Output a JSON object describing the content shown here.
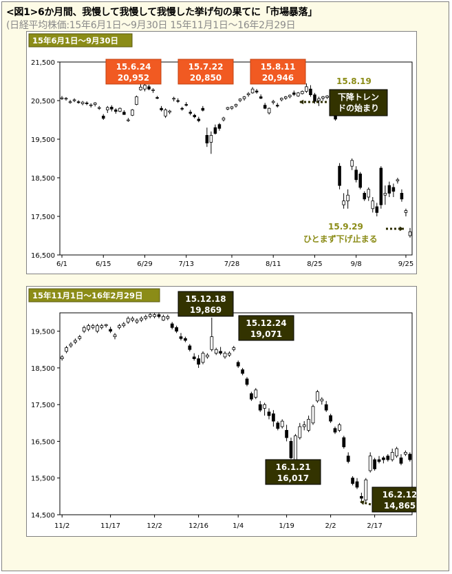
{
  "header": {
    "title": "<図1>6か月間、我慢して我慢して我慢した挙げ句の果てに「市場暴落」",
    "subtitle": "(日経平均株価:15年6月1日〜9月30日 15年11月1日〜16年2月29日"
  },
  "colors": {
    "orange": "#f15a22",
    "darkbox": "#333300",
    "olive": "#8b8c17",
    "outerbg": "#fdfbe6"
  },
  "chart_data": [
    {
      "type": "candlestick",
      "title": "15年6月1日〜9月30日",
      "ylim": [
        16500,
        21500
      ],
      "yticks": [
        "21,500",
        "20,500",
        "19,500",
        "18,500",
        "17,500",
        "16,500"
      ],
      "ytick_values": [
        21500,
        20500,
        19500,
        18500,
        17500,
        16500
      ],
      "xtick_labels": [
        "6/1",
        "6/15",
        "6/29",
        "7/13",
        "7/28",
        "8/11",
        "8/25",
        "9/8",
        "9/25"
      ],
      "xtick_index": [
        0,
        10,
        20,
        30,
        41,
        51,
        61,
        71,
        83
      ],
      "n_days": 85,
      "candles": [
        [
          20569,
          20620,
          20520,
          20570
        ],
        [
          20545,
          20590,
          20500,
          20560
        ],
        [
          20470,
          20520,
          20420,
          20470
        ],
        [
          20500,
          20560,
          20460,
          20520
        ],
        [
          20470,
          20510,
          20420,
          20460
        ],
        [
          20420,
          20490,
          20380,
          20460
        ],
        [
          20440,
          20480,
          20380,
          20420
        ],
        [
          20380,
          20430,
          20320,
          20390
        ],
        [
          20400,
          20460,
          20350,
          20440
        ],
        [
          20320,
          20360,
          20260,
          20320
        ],
        [
          20100,
          20150,
          20000,
          20040
        ],
        [
          20260,
          20360,
          20180,
          20320
        ],
        [
          20330,
          20380,
          20220,
          20280
        ],
        [
          20260,
          20300,
          20160,
          20220
        ],
        [
          20220,
          20320,
          20200,
          20300
        ],
        [
          20200,
          20250,
          20130,
          20140
        ],
        [
          20000,
          20050,
          19950,
          20000
        ],
        [
          20120,
          20280,
          20100,
          20260
        ],
        [
          20400,
          20630,
          20380,
          20600
        ],
        [
          20780,
          20920,
          20760,
          20850
        ],
        [
          20800,
          20952,
          20740,
          20900
        ],
        [
          20860,
          20910,
          20770,
          20800
        ],
        [
          20760,
          20820,
          20700,
          20780
        ],
        [
          20580,
          20620,
          20540,
          20560
        ],
        [
          20300,
          20360,
          20220,
          20260
        ],
        [
          20100,
          20300,
          20050,
          20260
        ],
        [
          20200,
          20260,
          20150,
          20230
        ],
        [
          20550,
          20600,
          20480,
          20560
        ],
        [
          20500,
          20560,
          20440,
          20480
        ],
        [
          20300,
          20340,
          20240,
          20280
        ],
        [
          20400,
          20460,
          20350,
          20380
        ],
        [
          20200,
          20260,
          20120,
          20170
        ],
        [
          20120,
          20160,
          20040,
          20080
        ],
        [
          20020,
          20080,
          19940,
          19980
        ],
        [
          20300,
          20360,
          20220,
          20250
        ],
        [
          19600,
          19800,
          19300,
          19400
        ],
        [
          19420,
          19700,
          19120,
          19600
        ],
        [
          19800,
          19880,
          19620,
          19650
        ],
        [
          19880,
          19920,
          19720,
          19780
        ],
        [
          20000,
          20080,
          19960,
          20050
        ],
        [
          20280,
          20340,
          20250,
          20320
        ],
        [
          20300,
          20360,
          20260,
          20340
        ],
        [
          20360,
          20420,
          20320,
          20400
        ],
        [
          20500,
          20560,
          20460,
          20540
        ],
        [
          20550,
          20620,
          20500,
          20600
        ],
        [
          20650,
          20720,
          20600,
          20680
        ],
        [
          20700,
          20850,
          20680,
          20800
        ],
        [
          20750,
          20800,
          20680,
          20720
        ],
        [
          20600,
          20660,
          20540,
          20560
        ],
        [
          20380,
          20440,
          20280,
          20300
        ],
        [
          20180,
          20320,
          20140,
          20300
        ],
        [
          20450,
          20520,
          20400,
          20480
        ],
        [
          20380,
          20440,
          20320,
          20360
        ],
        [
          20520,
          20580,
          20480,
          20560
        ],
        [
          20560,
          20620,
          20520,
          20600
        ],
        [
          20600,
          20660,
          20560,
          20640
        ],
        [
          20700,
          20760,
          20620,
          20660
        ],
        [
          20620,
          20720,
          20600,
          20700
        ],
        [
          20680,
          20760,
          20660,
          20740
        ],
        [
          20740,
          20946,
          20700,
          20860
        ],
        [
          20800,
          20900,
          20600,
          20650
        ],
        [
          20650,
          20700,
          20420,
          20480
        ],
        [
          20500,
          20600,
          20360,
          20550
        ],
        [
          20560,
          20620,
          20500,
          20600
        ],
        [
          20580,
          20640,
          20540,
          20620
        ],
        [
          20400,
          20460,
          20300,
          20330
        ],
        [
          20100,
          20160,
          19980,
          20020
        ],
        [
          18800,
          18880,
          18200,
          18300
        ],
        [
          17800,
          18100,
          17700,
          17900
        ],
        [
          17900,
          18200,
          17700,
          18050
        ],
        [
          18800,
          19000,
          18700,
          18950
        ],
        [
          18700,
          18800,
          18380,
          18450
        ],
        [
          18600,
          18650,
          18200,
          18250
        ],
        [
          18100,
          18150,
          17900,
          17950
        ],
        [
          18000,
          18250,
          17900,
          18200
        ],
        [
          17700,
          18000,
          17600,
          17900
        ],
        [
          17750,
          17850,
          17500,
          17600
        ],
        [
          18750,
          18800,
          17700,
          17800
        ],
        [
          18050,
          18300,
          17800,
          18100
        ],
        [
          18300,
          18400,
          18000,
          18100
        ],
        [
          18250,
          18350,
          18000,
          18150
        ],
        [
          18420,
          18500,
          18350,
          18450
        ],
        [
          18100,
          18200,
          17880,
          17950
        ],
        [
          17600,
          17700,
          17500,
          17650
        ],
        [
          17000,
          17200,
          16950,
          17100
        ]
      ],
      "annotations": [
        {
          "text": [
            "15.6.24",
            "20,952"
          ],
          "style": "orange"
        },
        {
          "text": [
            "15.7.22",
            "20,850"
          ],
          "style": "orange"
        },
        {
          "text": [
            "15.8.11",
            "20,946"
          ],
          "style": "orange"
        },
        {
          "text": [
            "15.8.19"
          ],
          "style": "olive-text"
        },
        {
          "text": [
            "下降トレン",
            "ドの始まり"
          ],
          "style": "dark"
        },
        {
          "text": [
            "15.9.29"
          ],
          "style": "olive-text"
        },
        {
          "text": [
            "ひとまず下げ止まる"
          ],
          "style": "olive-text"
        }
      ]
    },
    {
      "type": "candlestick",
      "title": "15年11月1日〜16年2月29日",
      "ylim": [
        14500,
        20000
      ],
      "yticks": [
        "19,500",
        "18,500",
        "17,500",
        "16,500",
        "15,500",
        "14,500"
      ],
      "ytick_values": [
        19500,
        18500,
        17500,
        16500,
        15500,
        14500
      ],
      "xtick_labels": [
        "11/2",
        "11/17",
        "12/2",
        "12/16",
        "1/4",
        "1/19",
        "2/2",
        "2/17"
      ],
      "xtick_index": [
        0,
        11,
        21,
        31,
        40,
        51,
        61,
        71
      ],
      "n_days": 80,
      "candles": [
        [
          18750,
          18850,
          18700,
          18800
        ],
        [
          18950,
          19100,
          18900,
          19050
        ],
        [
          19100,
          19200,
          19050,
          19150
        ],
        [
          19200,
          19300,
          19150,
          19250
        ],
        [
          19300,
          19400,
          19250,
          19350
        ],
        [
          19500,
          19650,
          19450,
          19600
        ],
        [
          19550,
          19700,
          19500,
          19650
        ],
        [
          19600,
          19700,
          19550,
          19650
        ],
        [
          19500,
          19700,
          19450,
          19650
        ],
        [
          19600,
          19700,
          19550,
          19650
        ],
        [
          19650,
          19700,
          19600,
          19680
        ],
        [
          19550,
          19620,
          19450,
          19500
        ],
        [
          19350,
          19450,
          19280,
          19400
        ],
        [
          19600,
          19700,
          19550,
          19650
        ],
        [
          19650,
          19750,
          19600,
          19700
        ],
        [
          19750,
          19900,
          19700,
          19850
        ],
        [
          19800,
          19900,
          19750,
          19850
        ],
        [
          19750,
          19850,
          19700,
          19800
        ],
        [
          19800,
          19900,
          19750,
          19850
        ],
        [
          19850,
          19950,
          19800,
          19900
        ],
        [
          19900,
          20000,
          19850,
          19950
        ],
        [
          19900,
          20000,
          19850,
          19950
        ],
        [
          19950,
          20012,
          19850,
          19900
        ],
        [
          19800,
          19950,
          19780,
          19900
        ],
        [
          19850,
          19950,
          19800,
          19900
        ],
        [
          19700,
          19750,
          19550,
          19600
        ],
        [
          19600,
          19650,
          19450,
          19500
        ],
        [
          19350,
          19450,
          19250,
          19300
        ],
        [
          19300,
          19350,
          19200,
          19250
        ],
        [
          19100,
          19150,
          18950,
          19000
        ],
        [
          18800,
          18900,
          18700,
          18750
        ],
        [
          18750,
          18850,
          18500,
          18600
        ],
        [
          18650,
          18950,
          18600,
          18900
        ],
        [
          18800,
          18900,
          18750,
          18850
        ],
        [
          19000,
          19869,
          18950,
          19350
        ],
        [
          18900,
          19050,
          18850,
          19000
        ],
        [
          18950,
          19071,
          18850,
          18900
        ],
        [
          18800,
          18950,
          18750,
          18900
        ],
        [
          18850,
          18950,
          18800,
          18900
        ],
        [
          19000,
          19100,
          18950,
          19050
        ],
        [
          18650,
          18700,
          18500,
          18550
        ],
        [
          18450,
          18500,
          18300,
          18350
        ],
        [
          18200,
          18250,
          18000,
          18050
        ],
        [
          17800,
          17850,
          17600,
          17650
        ],
        [
          17700,
          17950,
          17650,
          17900
        ],
        [
          17500,
          17600,
          17300,
          17350
        ],
        [
          17400,
          17550,
          17200,
          17500
        ],
        [
          17300,
          17400,
          17100,
          17200
        ],
        [
          17250,
          17350,
          16900,
          17050
        ],
        [
          17000,
          17050,
          16800,
          16850
        ],
        [
          16900,
          17100,
          16850,
          17050
        ],
        [
          16800,
          16950,
          16500,
          16600
        ],
        [
          16500,
          16600,
          16017,
          16050
        ],
        [
          16000,
          16700,
          15950,
          16650
        ],
        [
          16600,
          17000,
          16550,
          16900
        ],
        [
          16900,
          17050,
          16800,
          16950
        ],
        [
          16800,
          17200,
          16750,
          17100
        ],
        [
          17000,
          17500,
          16950,
          17450
        ],
        [
          17600,
          17900,
          17550,
          17850
        ],
        [
          17600,
          17700,
          17500,
          17650
        ],
        [
          17500,
          17600,
          17300,
          17350
        ],
        [
          17200,
          17250,
          17000,
          17050
        ],
        [
          16850,
          16900,
          16700,
          16750
        ],
        [
          16800,
          17000,
          16750,
          16950
        ],
        [
          16600,
          16650,
          16300,
          16350
        ],
        [
          16100,
          16200,
          15900,
          15950
        ],
        [
          15500,
          15550,
          15300,
          15350
        ],
        [
          15400,
          15500,
          15200,
          15250
        ],
        [
          15000,
          15100,
          14865,
          14950
        ],
        [
          14900,
          15500,
          14850,
          15450
        ],
        [
          15700,
          16200,
          15650,
          16100
        ],
        [
          16000,
          16050,
          15700,
          15750
        ],
        [
          16000,
          16100,
          15900,
          15950
        ],
        [
          16050,
          16100,
          15900,
          16000
        ],
        [
          16100,
          16150,
          15950,
          16000
        ],
        [
          16000,
          16300,
          15950,
          16200
        ],
        [
          16100,
          16350,
          16050,
          16300
        ],
        [
          16050,
          16150,
          15850,
          15900
        ],
        [
          16150,
          16250,
          16100,
          16200
        ],
        [
          16150,
          16200,
          15950,
          16000
        ]
      ],
      "annotations": [
        {
          "text": [
            "15.12.18",
            "19,869"
          ],
          "style": "dark"
        },
        {
          "text": [
            "15.12.24",
            "19,071"
          ],
          "style": "dark"
        },
        {
          "text": [
            "16.1.21",
            "16,017"
          ],
          "style": "dark"
        },
        {
          "text": [
            "16.2.12",
            "14,865"
          ],
          "style": "dark"
        }
      ]
    }
  ]
}
